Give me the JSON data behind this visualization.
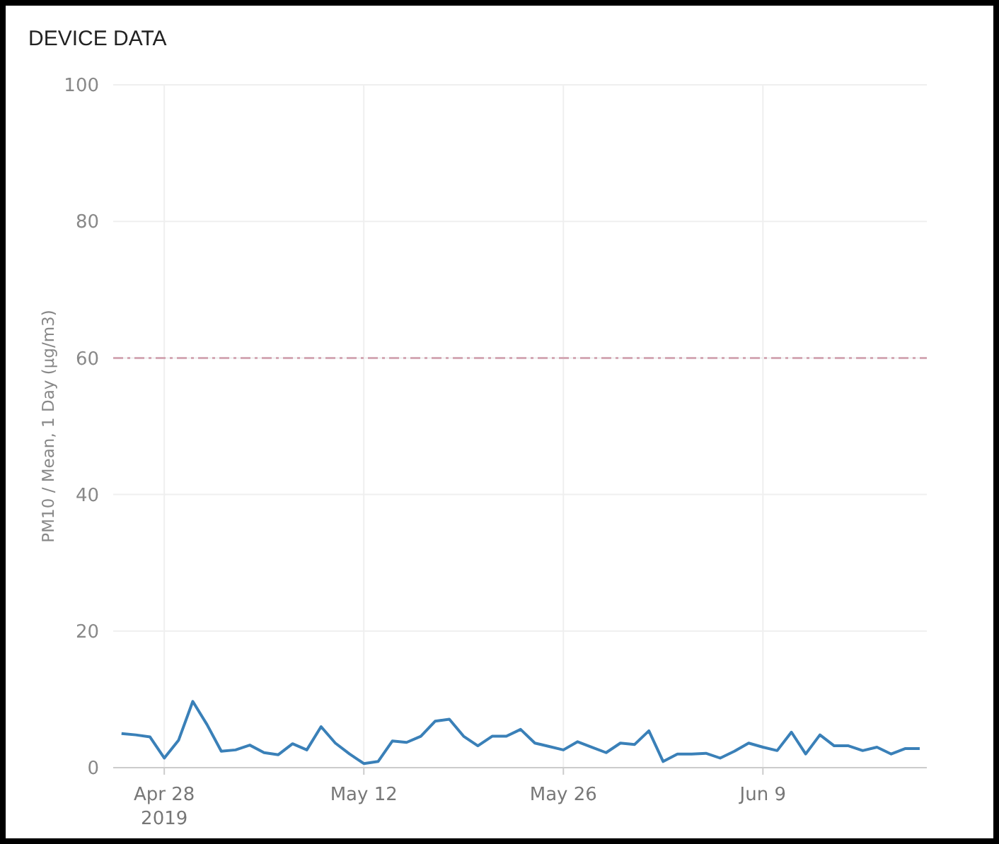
{
  "chart_data": {
    "type": "line",
    "title": "DEVICE DATA",
    "ylabel": "PM10 / Mean, 1 Day (µg/m3)",
    "x": [
      "2019-04-25",
      "2019-04-26",
      "2019-04-27",
      "2019-04-28",
      "2019-04-29",
      "2019-04-30",
      "2019-05-01",
      "2019-05-02",
      "2019-05-03",
      "2019-05-04",
      "2019-05-05",
      "2019-05-06",
      "2019-05-07",
      "2019-05-08",
      "2019-05-09",
      "2019-05-10",
      "2019-05-11",
      "2019-05-12",
      "2019-05-13",
      "2019-05-14",
      "2019-05-15",
      "2019-05-16",
      "2019-05-17",
      "2019-05-18",
      "2019-05-19",
      "2019-05-20",
      "2019-05-21",
      "2019-05-22",
      "2019-05-23",
      "2019-05-24",
      "2019-05-25",
      "2019-05-26",
      "2019-05-27",
      "2019-05-28",
      "2019-05-29",
      "2019-05-30",
      "2019-05-31",
      "2019-06-01",
      "2019-06-02",
      "2019-06-03",
      "2019-06-04",
      "2019-06-05",
      "2019-06-06",
      "2019-06-07",
      "2019-06-08",
      "2019-06-09",
      "2019-06-10",
      "2019-06-11",
      "2019-06-12",
      "2019-06-13",
      "2019-06-14",
      "2019-06-15",
      "2019-06-16",
      "2019-06-17",
      "2019-06-18",
      "2019-06-19",
      "2019-06-20"
    ],
    "series": [
      {
        "color": "#3a80b8",
        "values": [
          5.0,
          4.8,
          4.5,
          1.4,
          4.0,
          9.7,
          6.3,
          2.4,
          2.6,
          3.3,
          2.2,
          1.9,
          3.5,
          2.6,
          6.0,
          3.6,
          2.0,
          0.6,
          0.9,
          3.9,
          3.7,
          4.6,
          6.8,
          7.1,
          4.6,
          3.2,
          4.6,
          4.6,
          5.6,
          3.6,
          3.1,
          2.6,
          3.8,
          3.0,
          2.2,
          3.6,
          3.4,
          5.4,
          0.9,
          2.0,
          2.0,
          2.1,
          1.4,
          2.4,
          3.6,
          3.0,
          2.5,
          5.2,
          2.0,
          4.8,
          3.2,
          3.2,
          2.5,
          3.0,
          2.0,
          2.8,
          2.8
        ]
      }
    ],
    "xlim": [
      "2019-04-24T10:00",
      "2019-06-20T12:00"
    ],
    "xticks": [
      {
        "value": "2019-04-28",
        "label": "Apr 28\n2019"
      },
      {
        "value": "2019-05-12",
        "label": "May 12"
      },
      {
        "value": "2019-05-26",
        "label": "May 26"
      },
      {
        "value": "2019-06-09",
        "label": "Jun 9"
      }
    ],
    "ylim": [
      0,
      100
    ],
    "yticks": [
      0,
      20,
      40,
      60,
      80,
      100
    ],
    "ref_lines": [
      {
        "axis": "y",
        "value": 60,
        "color": "#d4a9b5",
        "line_style": "dashed"
      }
    ],
    "grid": true,
    "marker": "none",
    "line_style": "solid"
  }
}
